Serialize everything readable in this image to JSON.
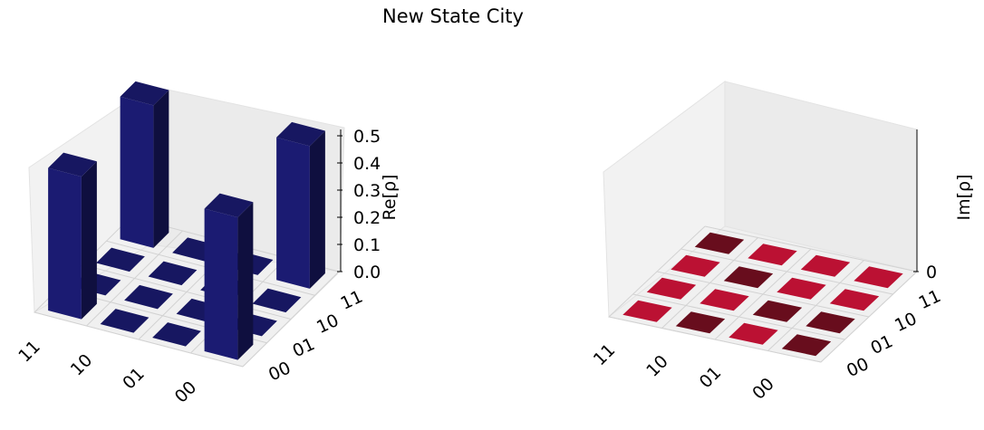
{
  "figure": {
    "title": "New State City"
  },
  "chart_data": [
    {
      "type": "bar3d",
      "name": "real-part",
      "zlabel": "Re[ρ]",
      "row_ticks": [
        "00",
        "01",
        "10",
        "11"
      ],
      "col_ticks": [
        "00",
        "01",
        "10",
        "11"
      ],
      "z_ticks": [
        "0.0",
        "0.1",
        "0.2",
        "0.3",
        "0.4",
        "0.5"
      ],
      "zlim": [
        0,
        0.5
      ],
      "matrix": [
        [
          0.5,
          0,
          0,
          0.5
        ],
        [
          0,
          0,
          0,
          0
        ],
        [
          0,
          0,
          0,
          0
        ],
        [
          0.5,
          0,
          0,
          0.5
        ]
      ],
      "bar_color": "#1b1b72",
      "grid": true
    },
    {
      "type": "bar3d",
      "name": "imaginary-part",
      "zlabel": "Im[ρ]",
      "row_ticks": [
        "00",
        "01",
        "10",
        "11"
      ],
      "col_ticks": [
        "00",
        "01",
        "10",
        "11"
      ],
      "z_ticks": [
        "0"
      ],
      "zlim": [
        0,
        0
      ],
      "matrix": [
        [
          0,
          0,
          0,
          0
        ],
        [
          0,
          0,
          0,
          0
        ],
        [
          0,
          0,
          0,
          0
        ],
        [
          0,
          0,
          0,
          0
        ]
      ],
      "bar_color": "#dc143c",
      "grid": true
    }
  ]
}
